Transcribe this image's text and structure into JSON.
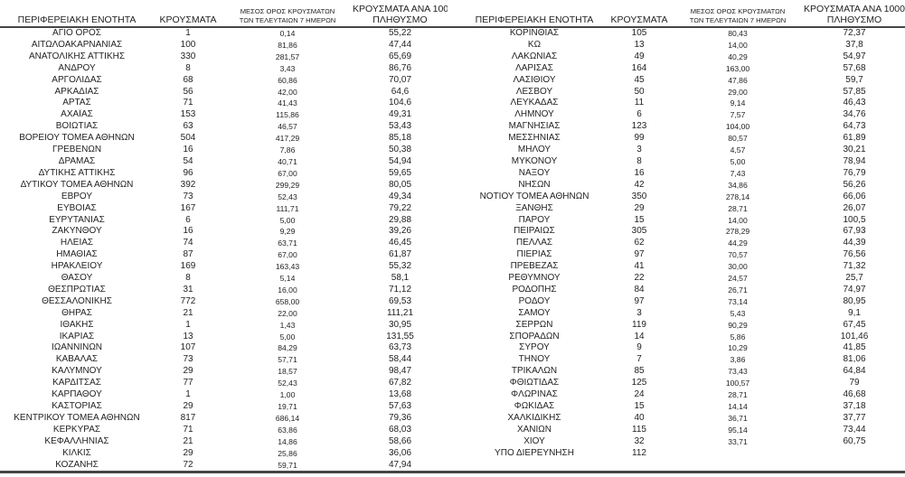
{
  "table": {
    "columns": {
      "region": "ΠΕΡΙΦΕΡΕΙΑΚΗ ΕΝΟΤΗΤΑ",
      "cases": "ΚΡΟΥΣΜΑΤΑ",
      "avg7_line1": "ΜΕΣΟΣ ΟΡΟΣ ΚΡΟΥΣΜΑΤΩΝ",
      "avg7_line2": "ΤΩΝ ΤΕΛΕΥΤΑΙΩΝ 7 ΗΜΕΡΩΝ",
      "per100k_line1": "ΚΡΟΥΣΜΑΤΑ ΑΝΑ 100000",
      "per100k_line2": "ΠΛΗΘΥΣΜΟ"
    },
    "left_rows": [
      [
        "ΑΓΙΟ ΟΡΟΣ",
        "1",
        "0,14",
        "55,22"
      ],
      [
        "ΑΙΤΩΛΟΑΚΑΡΝΑΝΙΑΣ",
        "100",
        "81,86",
        "47,44"
      ],
      [
        "ΑΝΑΤΟΛΙΚΗΣ ΑΤΤΙΚΗΣ",
        "330",
        "281,57",
        "65,69"
      ],
      [
        "ΑΝΔΡΟΥ",
        "8",
        "3,43",
        "86,76"
      ],
      [
        "ΑΡΓΟΛΙΔΑΣ",
        "68",
        "60,86",
        "70,07"
      ],
      [
        "ΑΡΚΑΔΙΑΣ",
        "56",
        "42,00",
        "64,6"
      ],
      [
        "ΑΡΤΑΣ",
        "71",
        "41,43",
        "104,6"
      ],
      [
        "ΑΧΑΪΑΣ",
        "153",
        "115,86",
        "49,31"
      ],
      [
        "ΒΟΙΩΤΙΑΣ",
        "63",
        "46,57",
        "53,43"
      ],
      [
        "ΒΟΡΕΙΟΥ ΤΟΜΕΑ ΑΘΗΝΩΝ",
        "504",
        "417,29",
        "85,18"
      ],
      [
        "ΓΡΕΒΕΝΩΝ",
        "16",
        "7,86",
        "50,38"
      ],
      [
        "ΔΡΑΜΑΣ",
        "54",
        "40,71",
        "54,94"
      ],
      [
        "ΔΥΤΙΚΗΣ ΑΤΤΙΚΗΣ",
        "96",
        "67,00",
        "59,65"
      ],
      [
        "ΔΥΤΙΚΟΥ ΤΟΜΕΑ ΑΘΗΝΩΝ",
        "392",
        "299,29",
        "80,05"
      ],
      [
        "ΕΒΡΟΥ",
        "73",
        "52,43",
        "49,34"
      ],
      [
        "ΕΥΒΟΙΑΣ",
        "167",
        "111,71",
        "79,22"
      ],
      [
        "ΕΥΡΥΤΑΝΙΑΣ",
        "6",
        "5,00",
        "29,88"
      ],
      [
        "ΖΑΚΥΝΘΟΥ",
        "16",
        "9,29",
        "39,26"
      ],
      [
        "ΗΛΕΙΑΣ",
        "74",
        "63,71",
        "46,45"
      ],
      [
        "ΗΜΑΘΙΑΣ",
        "87",
        "67,00",
        "61,87"
      ],
      [
        "ΗΡΑΚΛΕΙΟΥ",
        "169",
        "163,43",
        "55,32"
      ],
      [
        "ΘΑΣΟΥ",
        "8",
        "5,14",
        "58,1"
      ],
      [
        "ΘΕΣΠΡΩΤΙΑΣ",
        "31",
        "16,00",
        "71,12"
      ],
      [
        "ΘΕΣΣΑΛΟΝΙΚΗΣ",
        "772",
        "658,00",
        "69,53"
      ],
      [
        "ΘΗΡΑΣ",
        "21",
        "22,00",
        "111,21"
      ],
      [
        "ΙΘΑΚΗΣ",
        "1",
        "1,43",
        "30,95"
      ],
      [
        "ΙΚΑΡΙΑΣ",
        "13",
        "5,00",
        "131,55"
      ],
      [
        "ΙΩΑΝΝΙΝΩΝ",
        "107",
        "84,29",
        "63,73"
      ],
      [
        "ΚΑΒΑΛΑΣ",
        "73",
        "57,71",
        "58,44"
      ],
      [
        "ΚΑΛΥΜΝΟΥ",
        "29",
        "18,57",
        "98,47"
      ],
      [
        "ΚΑΡΔΙΤΣΑΣ",
        "77",
        "52,43",
        "67,82"
      ],
      [
        "ΚΑΡΠΑΘΟΥ",
        "1",
        "1,00",
        "13,68"
      ],
      [
        "ΚΑΣΤΟΡΙΑΣ",
        "29",
        "19,71",
        "57,63"
      ],
      [
        "ΚΕΝΤΡΙΚΟΥ ΤΟΜΕΑ ΑΘΗΝΩΝ",
        "817",
        "686,14",
        "79,36"
      ],
      [
        "ΚΕΡΚΥΡΑΣ",
        "71",
        "63,86",
        "68,03"
      ],
      [
        "ΚΕΦΑΛΛΗΝΙΑΣ",
        "21",
        "14,86",
        "58,66"
      ],
      [
        "ΚΙΛΚΙΣ",
        "29",
        "25,86",
        "36,06"
      ],
      [
        "ΚΟΖΑΝΗΣ",
        "72",
        "59,71",
        "47,94"
      ]
    ],
    "right_rows": [
      [
        "ΚΟΡΙΝΘΙΑΣ",
        "105",
        "80,43",
        "72,37"
      ],
      [
        "ΚΩ",
        "13",
        "14,00",
        "37,8"
      ],
      [
        "ΛΑΚΩΝΙΑΣ",
        "49",
        "40,29",
        "54,97"
      ],
      [
        "ΛΑΡΙΣΑΣ",
        "164",
        "163,00",
        "57,68"
      ],
      [
        "ΛΑΣΙΘΙΟΥ",
        "45",
        "47,86",
        "59,7"
      ],
      [
        "ΛΕΣΒΟΥ",
        "50",
        "29,00",
        "57,85"
      ],
      [
        "ΛΕΥΚΑΔΑΣ",
        "11",
        "9,14",
        "46,43"
      ],
      [
        "ΛΗΜΝΟΥ",
        "6",
        "7,57",
        "34,76"
      ],
      [
        "ΜΑΓΝΗΣΙΑΣ",
        "123",
        "104,00",
        "64,73"
      ],
      [
        "ΜΕΣΣΗΝΙΑΣ",
        "99",
        "80,57",
        "61,89"
      ],
      [
        "ΜΗΛΟΥ",
        "3",
        "4,57",
        "30,21"
      ],
      [
        "ΜΥΚΟΝΟΥ",
        "8",
        "5,00",
        "78,94"
      ],
      [
        "ΝΑΞΟΥ",
        "16",
        "7,43",
        "76,79"
      ],
      [
        "ΝΗΣΩΝ",
        "42",
        "34,86",
        "56,26"
      ],
      [
        "ΝΟΤΙΟΥ ΤΟΜΕΑ ΑΘΗΝΩΝ",
        "350",
        "278,14",
        "66,06"
      ],
      [
        "ΞΑΝΘΗΣ",
        "29",
        "28,71",
        "26,07"
      ],
      [
        "ΠΑΡΟΥ",
        "15",
        "14,00",
        "100,5"
      ],
      [
        "ΠΕΙΡΑΙΩΣ",
        "305",
        "278,29",
        "67,93"
      ],
      [
        "ΠΕΛΛΑΣ",
        "62",
        "44,29",
        "44,39"
      ],
      [
        "ΠΙΕΡΙΑΣ",
        "97",
        "70,57",
        "76,56"
      ],
      [
        "ΠΡΕΒΕΖΑΣ",
        "41",
        "30,00",
        "71,32"
      ],
      [
        "ΡΕΘΥΜΝΟΥ",
        "22",
        "24,57",
        "25,7"
      ],
      [
        "ΡΟΔΟΠΗΣ",
        "84",
        "26,71",
        "74,97"
      ],
      [
        "ΡΟΔΟΥ",
        "97",
        "73,14",
        "80,95"
      ],
      [
        "ΣΑΜΟΥ",
        "3",
        "5,43",
        "9,1"
      ],
      [
        "ΣΕΡΡΩΝ",
        "119",
        "90,29",
        "67,45"
      ],
      [
        "ΣΠΟΡΑΔΩΝ",
        "14",
        "5,86",
        "101,46"
      ],
      [
        "ΣΥΡΟΥ",
        "9",
        "10,29",
        "41,85"
      ],
      [
        "ΤΗΝΟΥ",
        "7",
        "3,86",
        "81,06"
      ],
      [
        "ΤΡΙΚΑΛΩΝ",
        "85",
        "73,43",
        "64,84"
      ],
      [
        "ΦΘΙΩΤΙΔΑΣ",
        "125",
        "100,57",
        "79"
      ],
      [
        "ΦΛΩΡΙΝΑΣ",
        "24",
        "28,71",
        "46,68"
      ],
      [
        "ΦΩΚΙΔΑΣ",
        "15",
        "14,14",
        "37,18"
      ],
      [
        "ΧΑΛΚΙΔΙΚΗΣ",
        "40",
        "36,71",
        "37,77"
      ],
      [
        "ΧΑΝΙΩΝ",
        "115",
        "95,14",
        "73,44"
      ],
      [
        "ΧΙΟΥ",
        "32",
        "33,71",
        "60,75"
      ],
      [
        "ΥΠΟ ΔΙΕΡΕΥΝΗΣΗ",
        "112",
        "",
        ""
      ]
    ]
  },
  "colors": {
    "rule": "#454545",
    "text": "#1f1f1f",
    "background": "#ffffff"
  }
}
